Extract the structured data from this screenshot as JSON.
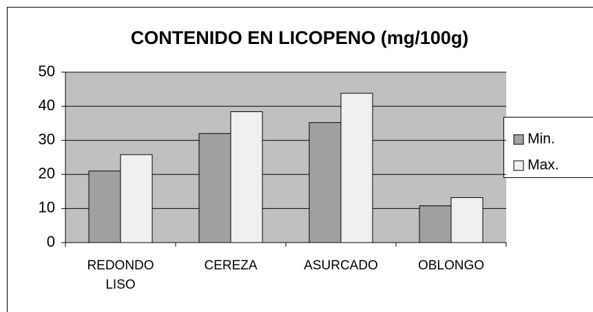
{
  "chart_data": {
    "type": "bar",
    "title": "CONTENIDO EN LICOPENO (mg/100g)",
    "categories": [
      "REDONDO LISO",
      "CEREZA",
      "ASURCADO",
      "OBLONGO"
    ],
    "series": [
      {
        "name": "Min.",
        "color": "#a0a0a0",
        "values": [
          21,
          32,
          35.2,
          10.8
        ]
      },
      {
        "name": "Max.",
        "color": "#f0f0f0",
        "values": [
          25.8,
          38.4,
          43.8,
          13.2
        ]
      }
    ],
    "ylim": [
      0,
      50
    ],
    "yticks": [
      0,
      10,
      20,
      30,
      40,
      50
    ],
    "grid": true,
    "legend": "right"
  }
}
